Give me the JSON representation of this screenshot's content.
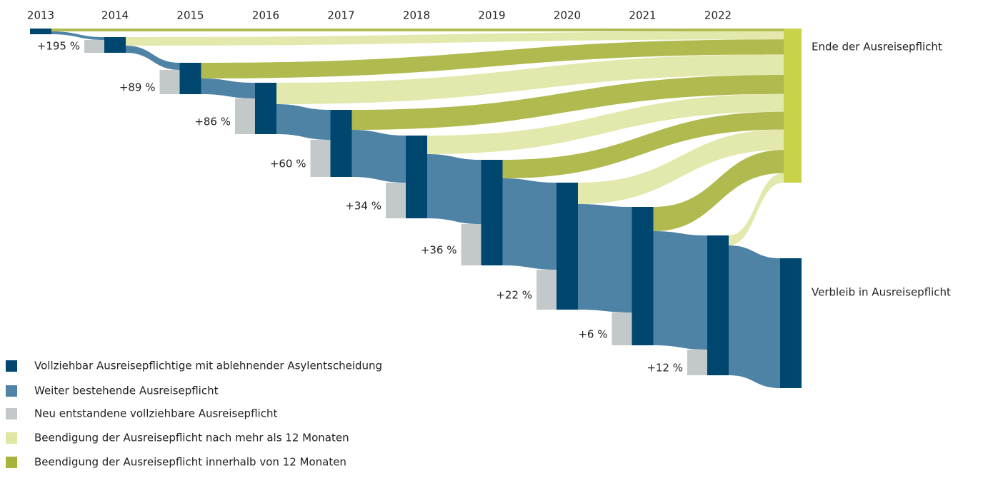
{
  "chart_data": {
    "type": "sankey",
    "categories": [
      "2013",
      "2014",
      "2015",
      "2016",
      "2017",
      "2018",
      "2019",
      "2020",
      "2021",
      "2022"
    ],
    "series": [
      {
        "name": "Vollziehbar Ausreisepflichtige mit ablehnender Asylentscheidung",
        "color": "#00476f",
        "values": [
          8,
          22,
          44,
          72,
          94,
          116,
          148,
          178,
          194,
          196
        ]
      },
      {
        "name": "Weiter bestehende Ausreisepflicht",
        "color": "#4f83a5"
      },
      {
        "name": "Neu entstandene vollziehbare Ausreisepflicht",
        "color": "#c3c8ca",
        "values": [
          null,
          18,
          34,
          50,
          52,
          50,
          58,
          56,
          46,
          36
        ]
      },
      {
        "name": "Beendigung der Ausreisepflicht nach mehr als 12 Monaten",
        "color": "#e0e6a3"
      },
      {
        "name": "Beendigung der Ausreisepflicht innerhalb von 12 Monaten",
        "color": "#a7b33b"
      }
    ],
    "growth": {
      "values": [
        195,
        89,
        86,
        60,
        34,
        36,
        22,
        6,
        12
      ],
      "value_labels": [
        "+195 %",
        "+89 %",
        "+86 %",
        "+60 %",
        "+34 %",
        "+36 %",
        "+22 %",
        "+6 %",
        "+12 %"
      ]
    },
    "end_nodes": [
      {
        "label": "Ende der Ausreisepflicht",
        "color": "#c9d34a"
      },
      {
        "label": "Verbleib in Ausreisepflicht",
        "color": "#00476f",
        "value": 182
      }
    ]
  }
}
